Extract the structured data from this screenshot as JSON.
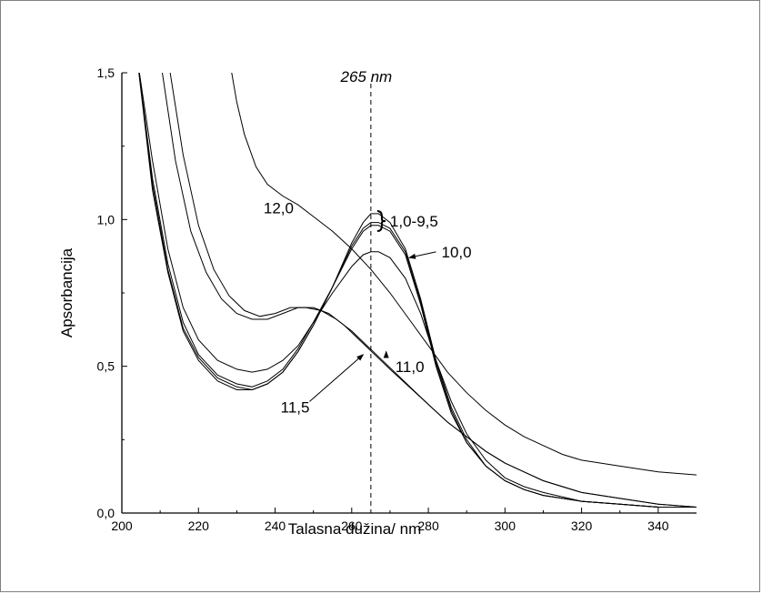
{
  "chart_data": {
    "type": "line",
    "title": "",
    "xlabel": "Talasna dužina/ nm",
    "ylabel": "Apsorbancija",
    "xlim": [
      200,
      350
    ],
    "ylim": [
      0.0,
      1.5
    ],
    "x_ticks": [
      200,
      220,
      240,
      260,
      280,
      300,
      320,
      340
    ],
    "x_tick_labels": [
      "200",
      "220",
      "240",
      "260",
      "280",
      "300",
      "320",
      "340"
    ],
    "y_ticks": [
      0.0,
      0.5,
      1.0,
      1.5
    ],
    "y_tick_labels": [
      "0,0",
      "0,5",
      "1,0",
      "1,5"
    ],
    "grid": false,
    "reference_line": {
      "x": 265,
      "label": "265 nm",
      "style": "dashed"
    },
    "annotations": [
      {
        "text": "12,0",
        "x": 237,
        "y": 1.04
      },
      {
        "text": "1,0-9,5",
        "x": 270,
        "y": 0.995,
        "bracket": true
      },
      {
        "text": "10,0",
        "x": 282,
        "y": 0.89,
        "arrow_to": [
          275,
          0.87
        ]
      },
      {
        "text": "11,0",
        "x": 269,
        "y": 0.53,
        "arrow_to": [
          269,
          0.55
        ]
      },
      {
        "text": "11,5",
        "x": 249,
        "y": 0.38,
        "arrow_to": [
          263,
          0.54
        ]
      }
    ],
    "series": [
      {
        "x": [
          204,
          208,
          212,
          216,
          220,
          225,
          230,
          234,
          238,
          242,
          246,
          250,
          255,
          260,
          263,
          265,
          267,
          270,
          274,
          278,
          282,
          286,
          290,
          295,
          300,
          305,
          310,
          320,
          330,
          340,
          350
        ],
        "y": [
          1.55,
          1.1,
          0.82,
          0.62,
          0.52,
          0.45,
          0.42,
          0.42,
          0.44,
          0.48,
          0.55,
          0.64,
          0.77,
          0.92,
          0.99,
          1.02,
          1.02,
          0.99,
          0.9,
          0.73,
          0.52,
          0.36,
          0.25,
          0.16,
          0.11,
          0.08,
          0.06,
          0.04,
          0.03,
          0.02,
          0.02
        ]
      },
      {
        "x": [
          204,
          208,
          212,
          216,
          220,
          225,
          230,
          234,
          238,
          242,
          246,
          250,
          255,
          260,
          263,
          265,
          267,
          270,
          274,
          278,
          282,
          286,
          290,
          295,
          300,
          305,
          310,
          320,
          330,
          340,
          350
        ],
        "y": [
          1.55,
          1.12,
          0.83,
          0.63,
          0.53,
          0.46,
          0.43,
          0.42,
          0.44,
          0.48,
          0.55,
          0.64,
          0.77,
          0.91,
          0.97,
          0.99,
          0.99,
          0.97,
          0.89,
          0.72,
          0.51,
          0.35,
          0.24,
          0.16,
          0.11,
          0.08,
          0.06,
          0.04,
          0.03,
          0.02,
          0.02
        ]
      },
      {
        "x": [
          204,
          208,
          212,
          216,
          220,
          225,
          230,
          234,
          238,
          242,
          246,
          250,
          255,
          260,
          263,
          265,
          267,
          270,
          274,
          278,
          282,
          286,
          290,
          295,
          300,
          305,
          310,
          320,
          330,
          340,
          350
        ],
        "y": [
          1.55,
          1.14,
          0.85,
          0.65,
          0.54,
          0.47,
          0.44,
          0.43,
          0.45,
          0.49,
          0.56,
          0.65,
          0.77,
          0.9,
          0.96,
          0.98,
          0.98,
          0.96,
          0.88,
          0.71,
          0.5,
          0.34,
          0.24,
          0.16,
          0.11,
          0.08,
          0.06,
          0.04,
          0.03,
          0.02,
          0.02
        ]
      },
      {
        "x": [
          204,
          208,
          212,
          216,
          220,
          225,
          230,
          234,
          238,
          242,
          246,
          250,
          255,
          260,
          263,
          265,
          267,
          270,
          274,
          278,
          282,
          286,
          290,
          295,
          300,
          305,
          310,
          320,
          330,
          340,
          350
        ],
        "y": [
          1.55,
          1.2,
          0.9,
          0.7,
          0.59,
          0.52,
          0.49,
          0.48,
          0.49,
          0.52,
          0.57,
          0.65,
          0.75,
          0.84,
          0.88,
          0.89,
          0.89,
          0.87,
          0.8,
          0.68,
          0.52,
          0.38,
          0.27,
          0.18,
          0.12,
          0.09,
          0.07,
          0.04,
          0.03,
          0.02,
          0.02
        ]
      },
      {
        "x": [
          210,
          214,
          218,
          222,
          226,
          230,
          234,
          238,
          242,
          246,
          250,
          254,
          258,
          262,
          266,
          270,
          275,
          280,
          285,
          290,
          295,
          300,
          305,
          310,
          320,
          330,
          340,
          350
        ],
        "y": [
          1.55,
          1.2,
          0.96,
          0.82,
          0.73,
          0.68,
          0.66,
          0.66,
          0.68,
          0.7,
          0.7,
          0.68,
          0.64,
          0.59,
          0.54,
          0.49,
          0.43,
          0.37,
          0.31,
          0.26,
          0.21,
          0.17,
          0.14,
          0.11,
          0.07,
          0.05,
          0.03,
          0.02
        ]
      },
      {
        "x": [
          212,
          216,
          220,
          224,
          228,
          232,
          236,
          240,
          244,
          248,
          252,
          256,
          260,
          264,
          268,
          272,
          276,
          280,
          285,
          290,
          295,
          300,
          305,
          310,
          320,
          330,
          340,
          350
        ],
        "y": [
          1.55,
          1.22,
          0.98,
          0.83,
          0.74,
          0.69,
          0.67,
          0.68,
          0.7,
          0.7,
          0.69,
          0.66,
          0.62,
          0.57,
          0.52,
          0.47,
          0.42,
          0.37,
          0.31,
          0.26,
          0.21,
          0.17,
          0.14,
          0.11,
          0.07,
          0.05,
          0.03,
          0.02
        ]
      },
      {
        "x": [
          228,
          230,
          232,
          235,
          238,
          242,
          246,
          250,
          255,
          260,
          265,
          270,
          275,
          280,
          285,
          290,
          295,
          300,
          305,
          310,
          315,
          320,
          325,
          330,
          340,
          350
        ],
        "y": [
          1.55,
          1.4,
          1.29,
          1.18,
          1.12,
          1.08,
          1.05,
          1.01,
          0.96,
          0.9,
          0.83,
          0.75,
          0.66,
          0.57,
          0.48,
          0.41,
          0.35,
          0.3,
          0.26,
          0.23,
          0.2,
          0.18,
          0.17,
          0.16,
          0.14,
          0.13
        ]
      }
    ]
  }
}
